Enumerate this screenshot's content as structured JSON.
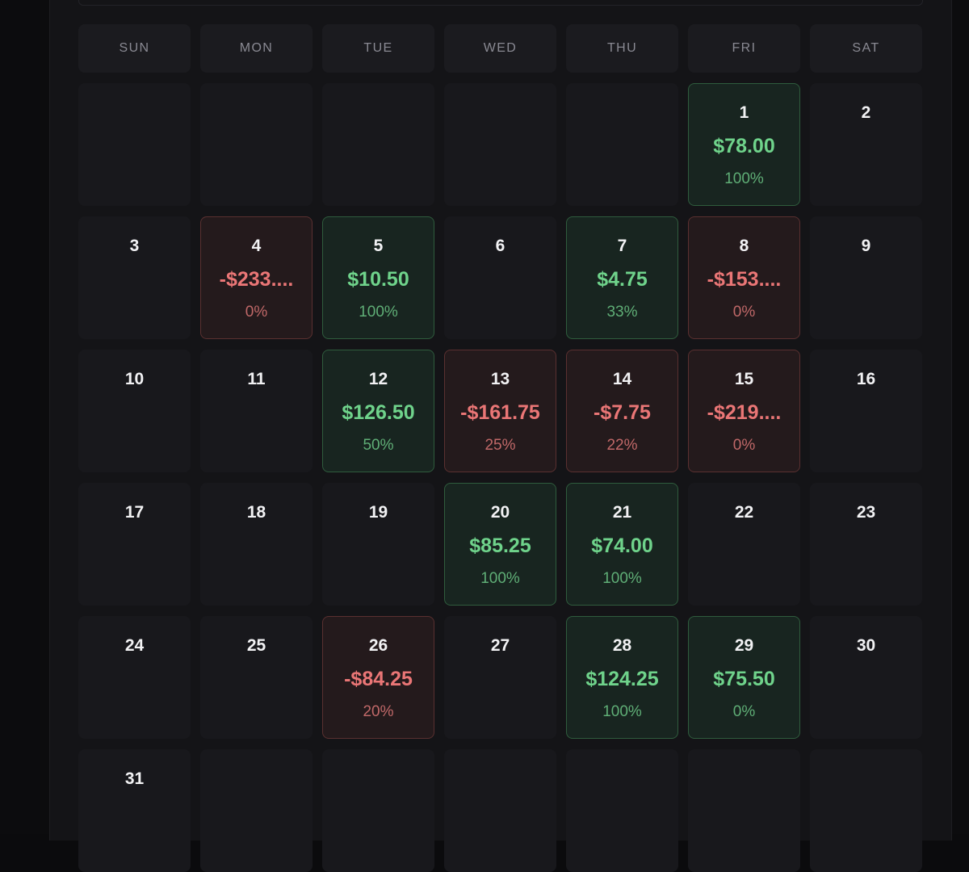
{
  "weekdays": [
    "SUN",
    "MON",
    "TUE",
    "WED",
    "THU",
    "FRI",
    "SAT"
  ],
  "weeks": [
    [
      null,
      null,
      null,
      null,
      null,
      {
        "day": "1",
        "amount": "$78.00",
        "pct": "100%",
        "status": "pos"
      },
      {
        "day": "2"
      }
    ],
    [
      {
        "day": "3"
      },
      {
        "day": "4",
        "amount": "-$233....",
        "pct": "0%",
        "status": "neg"
      },
      {
        "day": "5",
        "amount": "$10.50",
        "pct": "100%",
        "status": "pos"
      },
      {
        "day": "6"
      },
      {
        "day": "7",
        "amount": "$4.75",
        "pct": "33%",
        "status": "pos"
      },
      {
        "day": "8",
        "amount": "-$153....",
        "pct": "0%",
        "status": "neg"
      },
      {
        "day": "9"
      }
    ],
    [
      {
        "day": "10"
      },
      {
        "day": "11"
      },
      {
        "day": "12",
        "amount": "$126.50",
        "pct": "50%",
        "status": "pos"
      },
      {
        "day": "13",
        "amount": "-$161.75",
        "pct": "25%",
        "status": "neg"
      },
      {
        "day": "14",
        "amount": "-$7.75",
        "pct": "22%",
        "status": "neg"
      },
      {
        "day": "15",
        "amount": "-$219....",
        "pct": "0%",
        "status": "neg"
      },
      {
        "day": "16"
      }
    ],
    [
      {
        "day": "17"
      },
      {
        "day": "18"
      },
      {
        "day": "19"
      },
      {
        "day": "20",
        "amount": "$85.25",
        "pct": "100%",
        "status": "pos"
      },
      {
        "day": "21",
        "amount": "$74.00",
        "pct": "100%",
        "status": "pos"
      },
      {
        "day": "22"
      },
      {
        "day": "23"
      }
    ],
    [
      {
        "day": "24"
      },
      {
        "day": "25"
      },
      {
        "day": "26",
        "amount": "-$84.25",
        "pct": "20%",
        "status": "neg"
      },
      {
        "day": "27"
      },
      {
        "day": "28",
        "amount": "$124.25",
        "pct": "100%",
        "status": "pos"
      },
      {
        "day": "29",
        "amount": "$75.50",
        "pct": "0%",
        "status": "pos"
      },
      {
        "day": "30"
      }
    ],
    [
      {
        "day": "31"
      },
      null,
      null,
      null,
      null,
      null,
      null
    ]
  ],
  "colors": {
    "positive_text": "#6fd38b",
    "positive_bg": "#182520",
    "negative_text": "#ea7676",
    "negative_bg": "#241a1c",
    "empty_bg": "#18181c"
  }
}
